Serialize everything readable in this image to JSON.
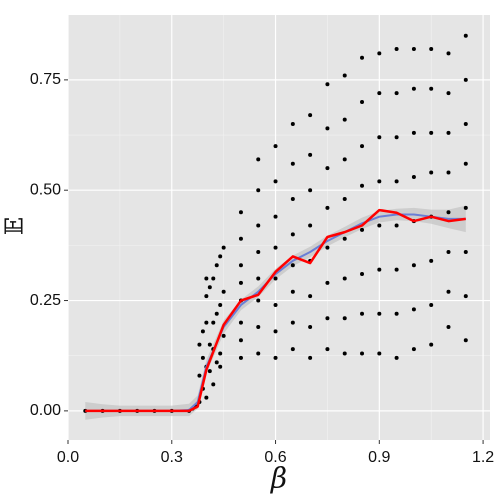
{
  "chart_data": {
    "type": "scatter",
    "x_label": "β",
    "y_label": "𝔼",
    "xlim": [
      0,
      1.22
    ],
    "ylim": [
      -0.066,
      0.897
    ],
    "xticks": [
      {
        "value": 0,
        "label": "0.0"
      },
      0.3,
      0.6,
      0.9,
      1.2
    ],
    "yticks": [
      {
        "value": 0,
        "label": "0.00"
      },
      {
        "value": 0.25,
        "label": "0.25"
      },
      {
        "value": 0.5,
        "label": "0.50"
      },
      {
        "value": 0.75,
        "label": "0.75"
      }
    ],
    "xminor": [
      0.15,
      0.45,
      0.75,
      1.05
    ],
    "yminor": [
      0.125,
      0.375,
      0.625
    ],
    "grid": true,
    "point_color": "#000000",
    "points": {
      "x": [
        0.05,
        0.1,
        0.15,
        0.2,
        0.25,
        0.3,
        0.35,
        0.37,
        0.38,
        0.38,
        0.39,
        0.39,
        0.39,
        0.4,
        0.4,
        0.4,
        0.4,
        0.41,
        0.41,
        0.41,
        0.42,
        0.42,
        0.42,
        0.43,
        0.43,
        0.43,
        0.44,
        0.44,
        0.44,
        0.45,
        0.45,
        0.45,
        0.38,
        0.4,
        0.42,
        0.44,
        0.36
      ],
      "y": [
        0,
        0,
        0,
        0,
        0,
        0,
        0,
        0.01,
        0.02,
        0.08,
        0.05,
        0.12,
        0.18,
        0.03,
        0.1,
        0.2,
        0.26,
        0.09,
        0.15,
        0.28,
        0.06,
        0.14,
        0.3,
        0.11,
        0.22,
        0.33,
        0.13,
        0.24,
        0.35,
        0.17,
        0.27,
        0.37,
        0.15,
        0.3,
        0.2,
        0.1,
        0.005
      ]
    },
    "columns": [
      {
        "x": 0.5,
        "y": [
          0.12,
          0.16,
          0.2,
          0.25,
          0.29,
          0.33,
          0.39,
          0.45
        ]
      },
      {
        "x": 0.55,
        "y": [
          0.13,
          0.19,
          0.25,
          0.3,
          0.36,
          0.42,
          0.5,
          0.57
        ]
      },
      {
        "x": 0.6,
        "y": [
          0.12,
          0.18,
          0.24,
          0.3,
          0.37,
          0.44,
          0.52,
          0.6
        ]
      },
      {
        "x": 0.65,
        "y": [
          0.14,
          0.2,
          0.27,
          0.33,
          0.4,
          0.48,
          0.56,
          0.65
        ]
      },
      {
        "x": 0.7,
        "y": [
          0.12,
          0.19,
          0.26,
          0.34,
          0.42,
          0.5,
          0.58,
          0.67
        ]
      },
      {
        "x": 0.75,
        "y": [
          0.14,
          0.21,
          0.29,
          0.37,
          0.46,
          0.55,
          0.64,
          0.74
        ]
      },
      {
        "x": 0.8,
        "y": [
          0.13,
          0.21,
          0.3,
          0.39,
          0.48,
          0.57,
          0.66,
          0.76
        ]
      },
      {
        "x": 0.85,
        "y": [
          0.13,
          0.22,
          0.31,
          0.41,
          0.51,
          0.6,
          0.7,
          0.8
        ]
      },
      {
        "x": 0.9,
        "y": [
          0.13,
          0.22,
          0.32,
          0.42,
          0.52,
          0.62,
          0.72,
          0.81
        ]
      },
      {
        "x": 0.95,
        "y": [
          0.12,
          0.22,
          0.32,
          0.42,
          0.52,
          0.62,
          0.72,
          0.82
        ]
      },
      {
        "x": 1.0,
        "y": [
          0.14,
          0.23,
          0.33,
          0.43,
          0.53,
          0.63,
          0.73,
          0.82
        ]
      },
      {
        "x": 1.05,
        "y": [
          0.15,
          0.24,
          0.34,
          0.44,
          0.54,
          0.63,
          0.73,
          0.82
        ]
      },
      {
        "x": 1.1,
        "y": [
          0.19,
          0.27,
          0.36,
          0.45,
          0.54,
          0.63,
          0.72,
          0.81
        ]
      },
      {
        "x": 1.15,
        "y": [
          0.16,
          0.26,
          0.36,
          0.46,
          0.56,
          0.65,
          0.75,
          0.85
        ]
      }
    ],
    "line_x": [
      0.05,
      0.1,
      0.15,
      0.2,
      0.25,
      0.3,
      0.35,
      0.375,
      0.4,
      0.45,
      0.5,
      0.55,
      0.6,
      0.65,
      0.7,
      0.75,
      0.8,
      0.85,
      0.9,
      0.95,
      1.0,
      1.05,
      1.1,
      1.15
    ],
    "mean": {
      "color": "#ff0000",
      "values": [
        0,
        0,
        0,
        0,
        0,
        0,
        0,
        0.01,
        0.093,
        0.195,
        0.25,
        0.263,
        0.315,
        0.35,
        0.335,
        0.394,
        0.405,
        0.42,
        0.455,
        0.449,
        0.43,
        0.44,
        0.43,
        0.435
      ]
    },
    "smooth": {
      "color": "#6a7fd6",
      "ribbon_color": "#bdbdbd",
      "values": [
        0,
        0,
        0,
        0,
        0,
        0,
        0.002,
        0.02,
        0.1,
        0.19,
        0.24,
        0.27,
        0.31,
        0.34,
        0.36,
        0.385,
        0.405,
        0.425,
        0.44,
        0.445,
        0.445,
        0.44,
        0.435,
        0.435
      ],
      "lower": [
        -0.02,
        -0.015,
        -0.012,
        -0.012,
        -0.012,
        -0.012,
        -0.012,
        0.005,
        0.085,
        0.175,
        0.228,
        0.258,
        0.298,
        0.328,
        0.348,
        0.373,
        0.393,
        0.412,
        0.427,
        0.432,
        0.43,
        0.424,
        0.414,
        0.405
      ],
      "upper": [
        0.02,
        0.015,
        0.012,
        0.012,
        0.012,
        0.012,
        0.016,
        0.035,
        0.115,
        0.205,
        0.252,
        0.282,
        0.322,
        0.352,
        0.372,
        0.397,
        0.417,
        0.438,
        0.453,
        0.458,
        0.46,
        0.456,
        0.456,
        0.465
      ]
    }
  }
}
